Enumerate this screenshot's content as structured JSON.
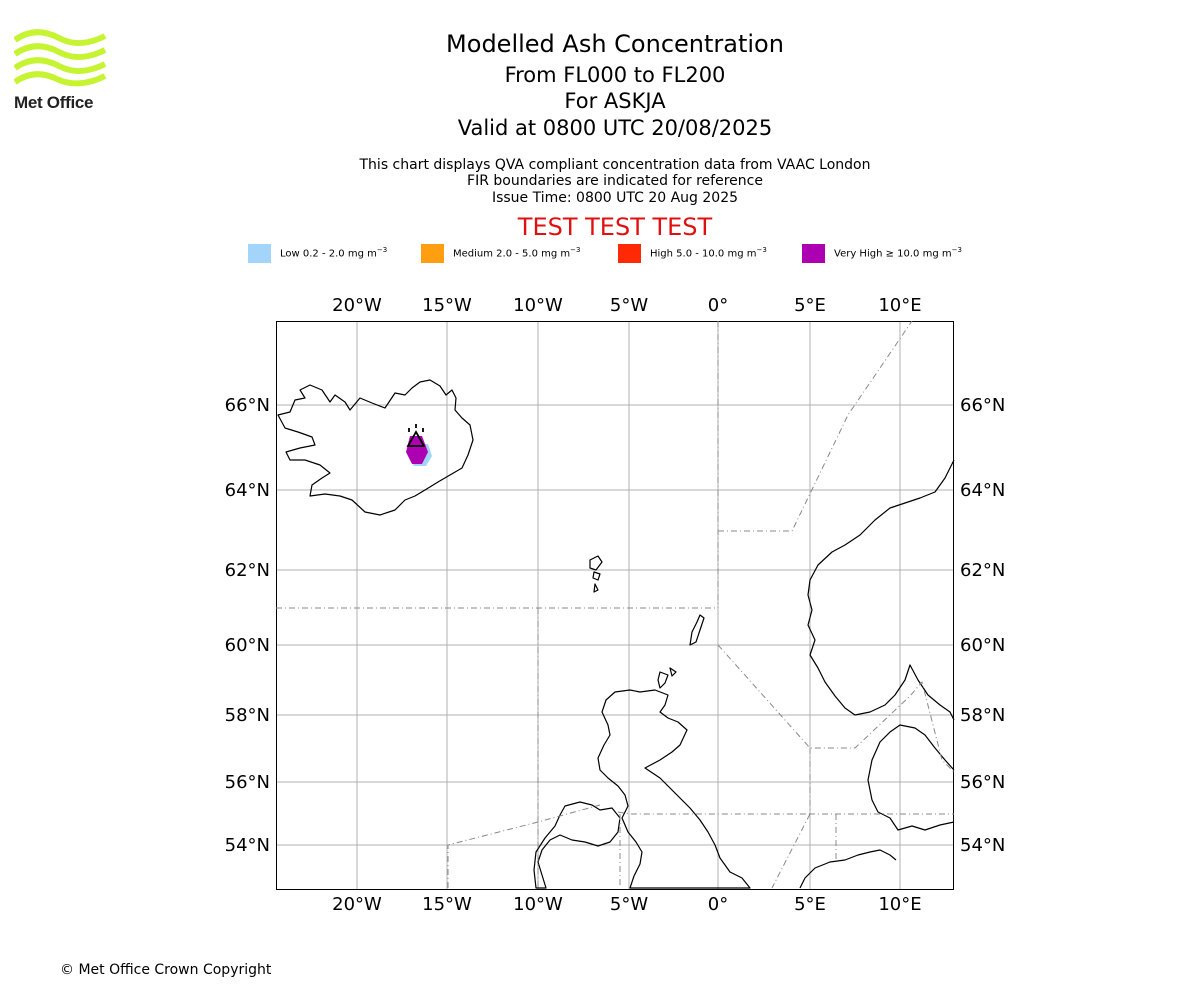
{
  "header": {
    "logo_text": "Met Office",
    "title": "Modelled Ash Concentration",
    "flight_levels": "From FL000 to FL200",
    "volcano_line": "For ASKJA",
    "valid_time": "Valid at 0800 UTC 20/08/2025",
    "note1": "This chart displays QVA compliant concentration data from VAAC London",
    "note2": "FIR boundaries are indicated for reference",
    "issue_time": "Issue Time: 0800 UTC 20 Aug 2025",
    "test_banner": "TEST TEST TEST"
  },
  "legend": [
    {
      "name_prefix": "Low 0.2 - 2.0 mg m",
      "exp": "−3",
      "color": "#a3d5fb"
    },
    {
      "name_prefix": "Medium 2.0 - 5.0 mg m",
      "exp": "−3",
      "color": "#ff9e10"
    },
    {
      "name_prefix": "High 5.0 - 10.0 mg m",
      "exp": "−3",
      "color": "#ff2a05"
    },
    {
      "name_prefix": "Very High  ≥  10.0 mg m",
      "exp": "−3",
      "color": "#ae00b3"
    }
  ],
  "map": {
    "lon_labels": [
      "20°W",
      "15°W",
      "10°W",
      "5°W",
      "0°",
      "5°E",
      "10°E"
    ],
    "lat_labels": [
      "66°N",
      "64°N",
      "62°N",
      "60°N",
      "58°N",
      "56°N",
      "54°N"
    ],
    "gridline_color": "#b0b0b0",
    "coastline_color": "#000000",
    "fir_boundary_color": "#888888",
    "volcano_marker": "volcano-triangle-icon"
  },
  "footer": {
    "copyright": "© Met Office Crown Copyright"
  }
}
